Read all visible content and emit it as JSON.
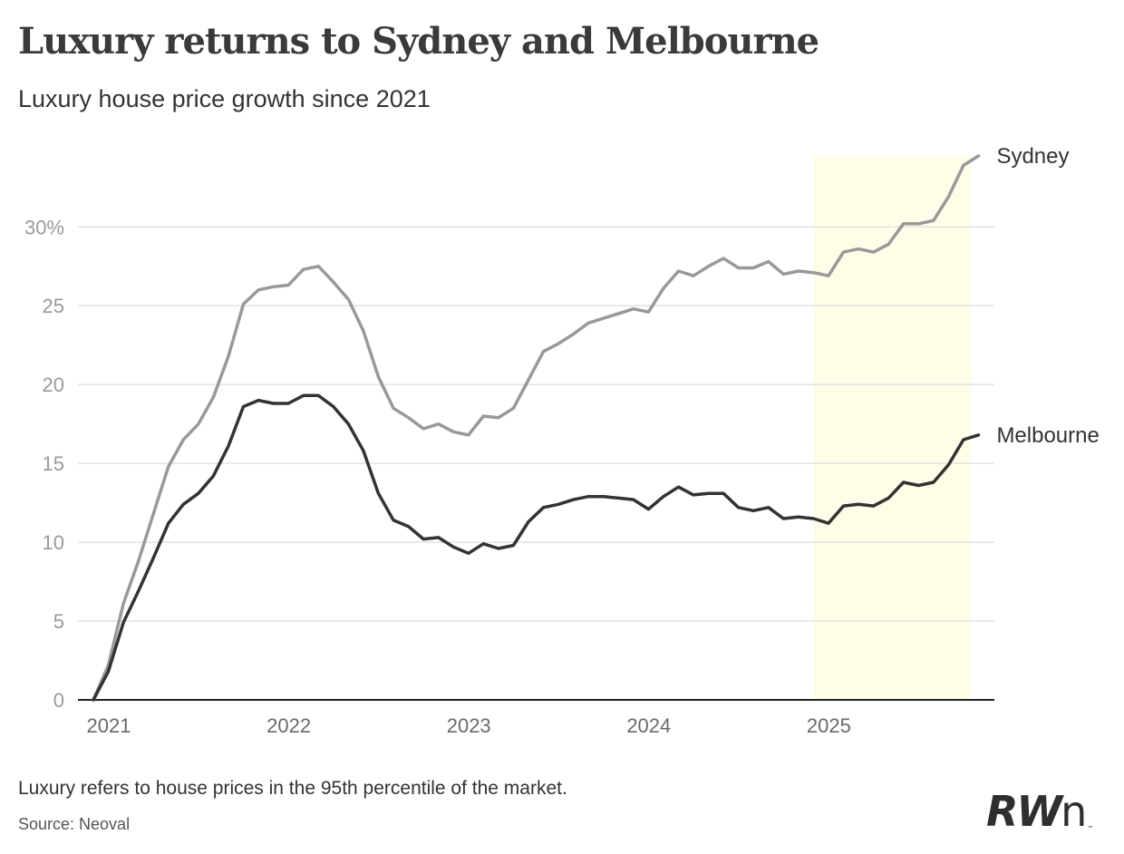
{
  "header": {
    "title": "Luxury returns to Sydney and Melbourne",
    "subtitle": "Luxury house price growth since 2021"
  },
  "footer": {
    "note": "Luxury refers to house prices in the 95th percentile of the market.",
    "source": "Source: Neoval"
  },
  "logo": {
    "text_main": "RW",
    "text_n": "n",
    "tm": "™"
  },
  "colors": {
    "sydney": "#999999",
    "melbourne": "#333333",
    "highlight": "#fffde8",
    "grid": "#e2e2e2",
    "axis": "#222222"
  },
  "chart_data": {
    "type": "line",
    "title": "Luxury returns to Sydney and Melbourne",
    "subtitle": "Luxury house price growth since 2021",
    "xlabel": "",
    "ylabel": "",
    "x_unit": "month index from Jan 2021 (0 = Jan 2021)",
    "xlim": [
      -1,
      60
    ],
    "ylim": [
      0,
      34.5
    ],
    "grid": true,
    "legend": "direct labels at line ends",
    "y_ticks": [
      0,
      5,
      10,
      15,
      20,
      25,
      30
    ],
    "y_tick_labels": [
      "0",
      "5",
      "10",
      "15",
      "20",
      "25",
      "30%"
    ],
    "x_ticks": [
      0,
      12,
      24,
      36,
      48
    ],
    "x_tick_labels": [
      "2021",
      "2022",
      "2023",
      "2024",
      "2025"
    ],
    "highlight_band": {
      "from": 48,
      "to": 58.5,
      "label": ""
    },
    "series": [
      {
        "name": "Sydney",
        "label": "Sydney",
        "values": [
          0,
          2.2,
          6.1,
          8.8,
          11.8,
          14.8,
          16.5,
          17.5,
          19.2,
          21.8,
          25.1,
          26,
          26.2,
          26.3,
          27.3,
          27.5,
          26.5,
          25.4,
          23.4,
          20.5,
          18.5,
          17.9,
          17.2,
          17.5,
          17,
          16.8,
          18,
          17.9,
          18.5,
          20.3,
          22.1,
          22.6,
          23.2,
          23.9,
          24.2,
          24.5,
          24.8,
          24.6,
          26.1,
          27.2,
          26.9,
          27.5,
          28,
          27.4,
          27.4,
          27.8,
          27,
          27.2,
          27.1,
          26.9,
          28.4,
          28.6,
          28.4,
          28.9,
          30.2,
          30.2,
          30.4,
          31.9,
          33.9,
          34.5
        ]
      },
      {
        "name": "Melbourne",
        "label": "Melbourne",
        "values": [
          0,
          1.8,
          4.9,
          6.9,
          9,
          11.2,
          12.4,
          13.1,
          14.2,
          16.1,
          18.6,
          19,
          18.8,
          18.8,
          19.3,
          19.3,
          18.6,
          17.5,
          15.8,
          13.1,
          11.4,
          11,
          10.2,
          10.3,
          9.7,
          9.3,
          9.9,
          9.6,
          9.8,
          11.3,
          12.2,
          12.4,
          12.7,
          12.9,
          12.9,
          12.8,
          12.7,
          12.1,
          12.9,
          13.5,
          13,
          13.1,
          13.1,
          12.2,
          12,
          12.2,
          11.5,
          11.6,
          11.5,
          11.2,
          12.3,
          12.4,
          12.3,
          12.8,
          13.8,
          13.6,
          13.8,
          14.9,
          16.5,
          16.8
        ]
      }
    ]
  }
}
